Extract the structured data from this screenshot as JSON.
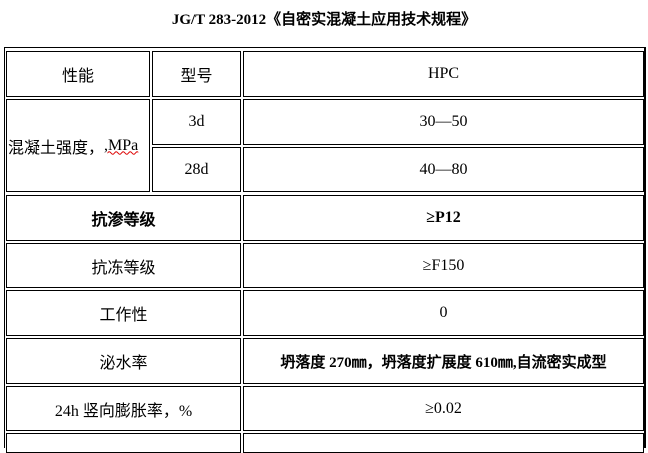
{
  "title": "JG/T 283-2012《自密实混凝土应用技术规程》",
  "header": {
    "property": "性能",
    "model": "型号",
    "type": "HPC"
  },
  "strength": {
    "label_prefix": "混凝土强度，",
    "label_unit": ",MPa",
    "rows": [
      {
        "age": "3d",
        "value": "30—50"
      },
      {
        "age": "28d",
        "value": "40—80"
      }
    ]
  },
  "rows": [
    {
      "label": "抗渗等级",
      "value": "≥P12",
      "bold": true
    },
    {
      "label": "抗冻等级",
      "value": "≥F150"
    },
    {
      "label": "工作性",
      "value": "0"
    },
    {
      "label": "泌水率",
      "value": "坍落度 270㎜，坍落度扩展度 610㎜,自流密实成型"
    },
    {
      "label": "24h 竖向膨胀率，%",
      "value": "≥0.02"
    }
  ]
}
